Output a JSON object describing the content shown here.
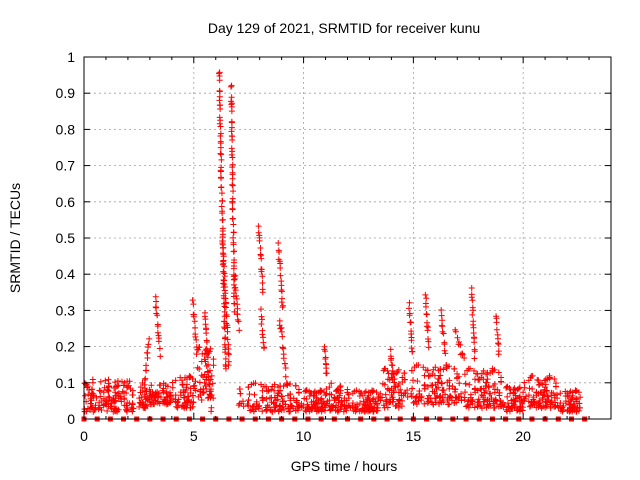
{
  "chart_data": {
    "type": "scatter",
    "title": "Day 129 of 2021, SRMTID for receiver kunu",
    "xlabel": "GPS time / hours",
    "ylabel": "SRMTID / TECUs",
    "xlim": [
      0,
      24
    ],
    "ylim": [
      0,
      1
    ],
    "xticks": [
      "0",
      "5",
      "10",
      "15",
      "20"
    ],
    "yticks": [
      "0",
      "0.1",
      "0.2",
      "0.3",
      "0.4",
      "0.5",
      "0.6",
      "0.7",
      "0.8",
      "0.9",
      "1"
    ],
    "grid": true,
    "marker": "+",
    "color": "#ff0000",
    "baseline_marker": "square",
    "baseline_x": [
      0.0,
      0.6,
      1.2,
      1.8,
      2.4,
      3.0,
      3.6,
      4.2,
      4.8,
      5.4,
      6.0,
      6.6,
      7.2,
      7.8,
      8.4,
      9.0,
      9.6,
      10.2,
      10.8,
      11.4,
      12.0,
      12.6,
      13.2,
      13.8,
      14.4,
      15.0,
      15.6,
      16.2,
      16.8,
      17.4,
      18.0,
      18.6,
      19.2,
      19.8,
      20.4,
      21.0,
      21.6,
      22.2,
      22.8
    ],
    "background_segments": [
      {
        "x0": 0.0,
        "x1": 2.3,
        "lo": 0.02,
        "hi": 0.11
      },
      {
        "x0": 2.5,
        "x1": 3.0,
        "lo": 0.03,
        "hi": 0.1
      },
      {
        "x0": 3.0,
        "x1": 4.0,
        "lo": 0.04,
        "hi": 0.1
      },
      {
        "x0": 4.0,
        "x1": 5.0,
        "lo": 0.03,
        "hi": 0.12
      },
      {
        "x0": 5.0,
        "x1": 5.9,
        "lo": 0.05,
        "hi": 0.2
      },
      {
        "x0": 7.0,
        "x1": 9.8,
        "lo": 0.02,
        "hi": 0.1
      },
      {
        "x0": 9.8,
        "x1": 11.0,
        "lo": 0.02,
        "hi": 0.08
      },
      {
        "x0": 11.0,
        "x1": 12.0,
        "lo": 0.02,
        "hi": 0.1
      },
      {
        "x0": 12.0,
        "x1": 13.4,
        "lo": 0.02,
        "hi": 0.08
      },
      {
        "x0": 13.4,
        "x1": 14.5,
        "lo": 0.03,
        "hi": 0.14
      },
      {
        "x0": 14.5,
        "x1": 17.0,
        "lo": 0.04,
        "hi": 0.15
      },
      {
        "x0": 17.0,
        "x1": 19.0,
        "lo": 0.03,
        "hi": 0.14
      },
      {
        "x0": 19.0,
        "x1": 20.0,
        "lo": 0.02,
        "hi": 0.09
      },
      {
        "x0": 20.0,
        "x1": 21.5,
        "lo": 0.03,
        "hi": 0.12
      },
      {
        "x0": 21.5,
        "x1": 22.6,
        "lo": 0.02,
        "hi": 0.08
      }
    ],
    "spike_tracks": [
      {
        "x0": 2.75,
        "x1": 2.95,
        "y0": 0.08,
        "y1": 0.22
      },
      {
        "x0": 3.25,
        "x1": 3.45,
        "y0": 0.34,
        "y1": 0.18
      },
      {
        "x0": 4.95,
        "x1": 5.15,
        "y0": 0.32,
        "y1": 0.18
      },
      {
        "x0": 5.5,
        "x1": 5.65,
        "y0": 0.3,
        "y1": 0.15
      },
      {
        "x0": 5.65,
        "x1": 5.8,
        "y0": 0.12,
        "y1": 0.03
      },
      {
        "x0": 6.15,
        "x1": 6.45,
        "y0": 0.96,
        "y1": 0.13
      },
      {
        "x0": 6.3,
        "x1": 6.6,
        "y0": 0.5,
        "y1": 0.15
      },
      {
        "x0": 6.7,
        "x1": 6.85,
        "y0": 0.92,
        "y1": 0.3
      },
      {
        "x0": 6.85,
        "x1": 7.05,
        "y0": 0.4,
        "y1": 0.25
      },
      {
        "x0": 7.95,
        "x1": 8.15,
        "y0": 0.53,
        "y1": 0.35
      },
      {
        "x0": 8.05,
        "x1": 8.2,
        "y0": 0.3,
        "y1": 0.19
      },
      {
        "x0": 8.85,
        "x1": 9.05,
        "y0": 0.48,
        "y1": 0.3
      },
      {
        "x0": 8.9,
        "x1": 9.2,
        "y0": 0.28,
        "y1": 0.12
      },
      {
        "x0": 10.95,
        "x1": 11.05,
        "y0": 0.2,
        "y1": 0.12
      },
      {
        "x0": 13.95,
        "x1": 14.15,
        "y0": 0.19,
        "y1": 0.1
      },
      {
        "x0": 14.8,
        "x1": 14.95,
        "y0": 0.32,
        "y1": 0.18
      },
      {
        "x0": 15.55,
        "x1": 15.7,
        "y0": 0.34,
        "y1": 0.2
      },
      {
        "x0": 16.25,
        "x1": 16.45,
        "y0": 0.3,
        "y1": 0.18
      },
      {
        "x0": 16.9,
        "x1": 17.3,
        "y0": 0.24,
        "y1": 0.16
      },
      {
        "x0": 17.65,
        "x1": 17.8,
        "y0": 0.36,
        "y1": 0.17
      },
      {
        "x0": 18.75,
        "x1": 18.9,
        "y0": 0.28,
        "y1": 0.18
      }
    ]
  }
}
